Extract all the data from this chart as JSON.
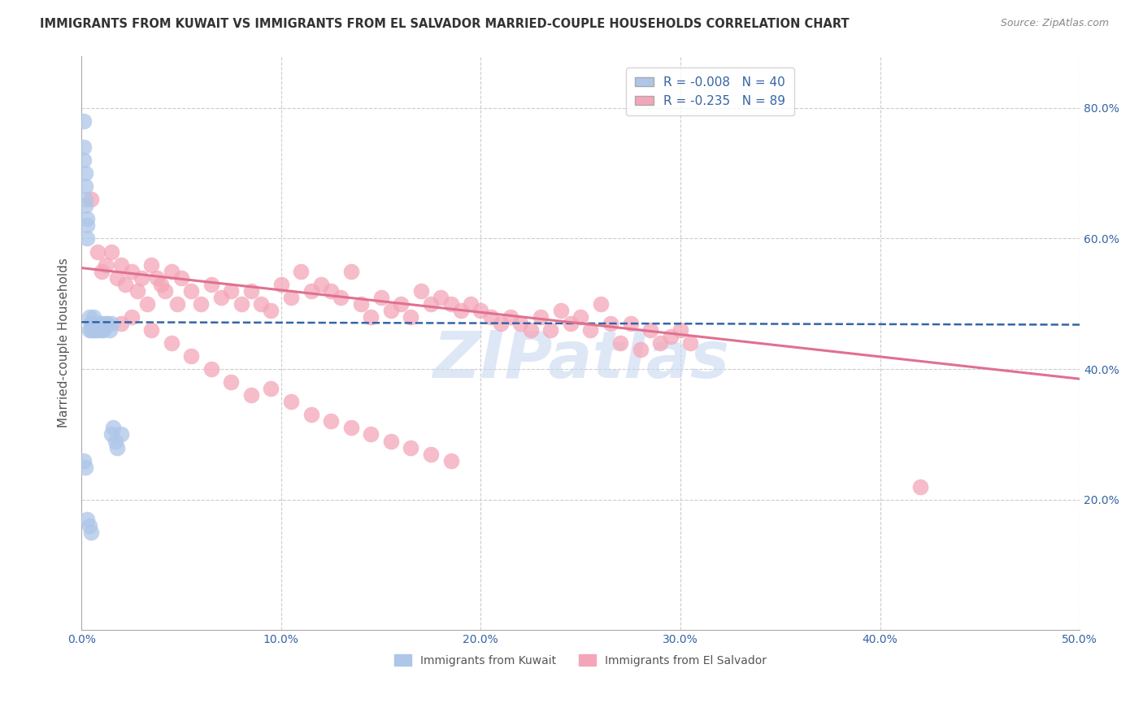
{
  "title": "IMMIGRANTS FROM KUWAIT VS IMMIGRANTS FROM EL SALVADOR MARRIED-COUPLE HOUSEHOLDS CORRELATION CHART",
  "source": "Source: ZipAtlas.com",
  "ylabel": "Married-couple Households",
  "x_tick_labels": [
    "0.0%",
    "10.0%",
    "20.0%",
    "30.0%",
    "40.0%",
    "50.0%"
  ],
  "x_tick_values": [
    0.0,
    0.1,
    0.2,
    0.3,
    0.4,
    0.5
  ],
  "y_tick_labels": [
    "20.0%",
    "40.0%",
    "60.0%",
    "80.0%"
  ],
  "y_tick_values": [
    0.2,
    0.4,
    0.6,
    0.8
  ],
  "xlim": [
    0.0,
    0.5
  ],
  "ylim": [
    0.0,
    0.88
  ],
  "r_kuwait": -0.008,
  "n_kuwait": 40,
  "r_elsalvador": -0.235,
  "n_elsalvador": 89,
  "scatter_kuwait_color": "#aec6e8",
  "scatter_elsalvador_color": "#f4a6b8",
  "trend_kuwait_color": "#3465a4",
  "trend_elsalvador_color": "#e07090",
  "watermark": "ZIPatlas",
  "watermark_color": "#c8d8f0",
  "background_color": "#ffffff",
  "kuwait_x": [
    0.001,
    0.001,
    0.001,
    0.002,
    0.002,
    0.002,
    0.002,
    0.003,
    0.003,
    0.003,
    0.004,
    0.004,
    0.005,
    0.005,
    0.005,
    0.006,
    0.006,
    0.006,
    0.007,
    0.007,
    0.008,
    0.008,
    0.009,
    0.01,
    0.01,
    0.011,
    0.012,
    0.013,
    0.014,
    0.015,
    0.015,
    0.016,
    0.017,
    0.018,
    0.02,
    0.001,
    0.002,
    0.003,
    0.004,
    0.005
  ],
  "kuwait_y": [
    0.78,
    0.74,
    0.72,
    0.7,
    0.68,
    0.66,
    0.65,
    0.63,
    0.62,
    0.6,
    0.48,
    0.46,
    0.47,
    0.47,
    0.46,
    0.48,
    0.47,
    0.46,
    0.47,
    0.46,
    0.47,
    0.46,
    0.47,
    0.46,
    0.47,
    0.46,
    0.47,
    0.47,
    0.46,
    0.47,
    0.3,
    0.31,
    0.29,
    0.28,
    0.3,
    0.26,
    0.25,
    0.17,
    0.16,
    0.15
  ],
  "elsalvador_x": [
    0.005,
    0.008,
    0.01,
    0.012,
    0.015,
    0.018,
    0.02,
    0.022,
    0.025,
    0.028,
    0.03,
    0.033,
    0.035,
    0.038,
    0.04,
    0.042,
    0.045,
    0.048,
    0.05,
    0.055,
    0.06,
    0.065,
    0.07,
    0.075,
    0.08,
    0.085,
    0.09,
    0.095,
    0.1,
    0.105,
    0.11,
    0.115,
    0.12,
    0.125,
    0.13,
    0.135,
    0.14,
    0.145,
    0.15,
    0.155,
    0.16,
    0.165,
    0.17,
    0.175,
    0.18,
    0.185,
    0.19,
    0.195,
    0.2,
    0.205,
    0.21,
    0.215,
    0.22,
    0.225,
    0.23,
    0.235,
    0.24,
    0.245,
    0.25,
    0.255,
    0.26,
    0.265,
    0.27,
    0.275,
    0.28,
    0.285,
    0.29,
    0.295,
    0.3,
    0.305,
    0.025,
    0.035,
    0.045,
    0.055,
    0.065,
    0.075,
    0.085,
    0.095,
    0.105,
    0.115,
    0.125,
    0.135,
    0.145,
    0.155,
    0.165,
    0.175,
    0.185,
    0.42,
    0.02
  ],
  "elsalvador_y": [
    0.66,
    0.58,
    0.55,
    0.56,
    0.58,
    0.54,
    0.56,
    0.53,
    0.55,
    0.52,
    0.54,
    0.5,
    0.56,
    0.54,
    0.53,
    0.52,
    0.55,
    0.5,
    0.54,
    0.52,
    0.5,
    0.53,
    0.51,
    0.52,
    0.5,
    0.52,
    0.5,
    0.49,
    0.53,
    0.51,
    0.55,
    0.52,
    0.53,
    0.52,
    0.51,
    0.55,
    0.5,
    0.48,
    0.51,
    0.49,
    0.5,
    0.48,
    0.52,
    0.5,
    0.51,
    0.5,
    0.49,
    0.5,
    0.49,
    0.48,
    0.47,
    0.48,
    0.47,
    0.46,
    0.48,
    0.46,
    0.49,
    0.47,
    0.48,
    0.46,
    0.5,
    0.47,
    0.44,
    0.47,
    0.43,
    0.46,
    0.44,
    0.45,
    0.46,
    0.44,
    0.48,
    0.46,
    0.44,
    0.42,
    0.4,
    0.38,
    0.36,
    0.37,
    0.35,
    0.33,
    0.32,
    0.31,
    0.3,
    0.29,
    0.28,
    0.27,
    0.26,
    0.22,
    0.47
  ],
  "kuwait_trend_y0": 0.472,
  "kuwait_trend_y1": 0.468,
  "elsalvador_trend_y0": 0.555,
  "elsalvador_trend_y1": 0.385
}
